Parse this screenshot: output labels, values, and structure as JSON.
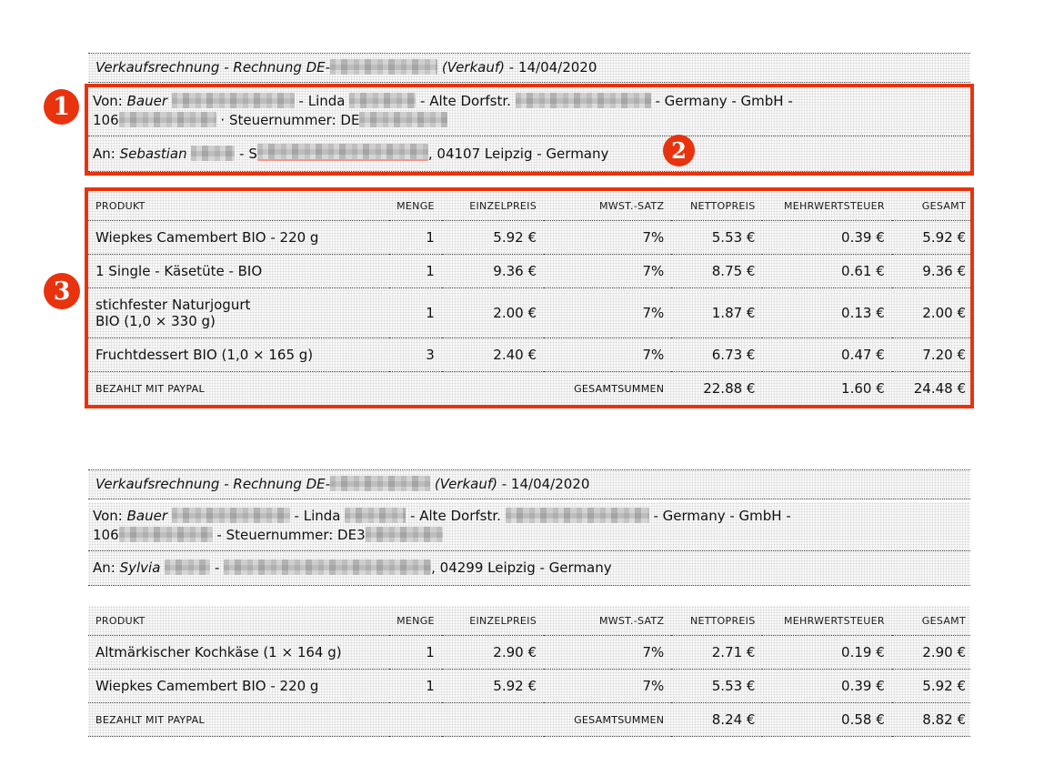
{
  "annotations": {
    "badges": [
      {
        "label": "1"
      },
      {
        "label": "2"
      },
      {
        "label": "3"
      }
    ],
    "highlight_color": "#e8330e"
  },
  "table": {
    "headers": [
      "PRODUKT",
      "MENGE",
      "EINZELPREIS",
      "MWST.-SATZ",
      "NETTOPREIS",
      "MEHRWERTSTEUER",
      "GESAMT"
    ],
    "paid_label": "BEZAHLT MIT PAYPAL",
    "totals_label": "GESAMTSUMMEN"
  },
  "invoices": [
    {
      "title": [
        {
          "t": "Verkaufsrechnung - Rechnung DE-",
          "i": true
        },
        {
          "r": 118
        },
        {
          "t": " (Verkauf)",
          "i": true
        },
        {
          "t": " - 14/04/2020"
        }
      ],
      "from_line1": [
        {
          "t": "Von: "
        },
        {
          "t": "Bauer",
          "i": true
        },
        {
          "t": " "
        },
        {
          "r": 135
        },
        {
          "t": " - Linda "
        },
        {
          "r": 73
        },
        {
          "t": " - Alte Dorfstr. "
        },
        {
          "r": 149
        },
        {
          "t": " - Germany - GmbH -"
        }
      ],
      "from_line2": [
        {
          "t": "106"
        },
        {
          "r": 107
        },
        {
          "t": " · Steuernummer: DE"
        },
        {
          "r": 97
        }
      ],
      "to_line": [
        {
          "t": "An: "
        },
        {
          "t": "Sebastian",
          "i": true
        },
        {
          "t": " "
        },
        {
          "r": 48
        },
        {
          "t": " - S"
        },
        {
          "r": 188,
          "u": true
        },
        {
          "t": ", 04107 Leipzig - Germany"
        }
      ],
      "rows": [
        [
          "Wiepkes Camembert BIO - 220 g",
          "1",
          "5.92 €",
          "7%",
          "5.53 €",
          "0.39 €",
          "5.92 €"
        ],
        [
          "1 Single - Käsetüte - BIO",
          "1",
          "9.36 €",
          "7%",
          "8.75 €",
          "0.61 €",
          "9.36 €"
        ],
        [
          "stichfester Naturjogurt\nBIO (1,0 × 330 g)",
          "1",
          "2.00 €",
          "7%",
          "1.87 €",
          "0.13 €",
          "2.00 €"
        ],
        [
          "Fruchtdessert BIO (1,0 × 165 g)",
          "3",
          "2.40 €",
          "7%",
          "6.73 €",
          "0.47 €",
          "7.20 €"
        ]
      ],
      "totals": [
        "22.88 €",
        "1.60 €",
        "24.48 €"
      ]
    },
    {
      "title": [
        {
          "t": "Verkaufsrechnung - Rechnung DE-",
          "i": true
        },
        {
          "r": 110
        },
        {
          "t": " (Verkauf)",
          "i": true
        },
        {
          "t": " - 14/04/2020"
        }
      ],
      "from_line1": [
        {
          "t": "Von: "
        },
        {
          "t": "Bauer",
          "i": true
        },
        {
          "t": " "
        },
        {
          "r": 130
        },
        {
          "t": " - Linda "
        },
        {
          "r": 67
        },
        {
          "t": " - Alte Dorfstr. "
        },
        {
          "r": 158
        },
        {
          "t": " - Germany - GmbH -"
        }
      ],
      "from_line2": [
        {
          "t": "106"
        },
        {
          "r": 103
        },
        {
          "t": " - Steuernummer: DE3"
        },
        {
          "r": 85
        }
      ],
      "to_line": [
        {
          "t": "An: "
        },
        {
          "t": "Sylvia",
          "i": true
        },
        {
          "t": " "
        },
        {
          "r": 50
        },
        {
          "t": " - "
        },
        {
          "r": 228
        },
        {
          "t": ", 04299 Leipzig - Germany"
        }
      ],
      "rows": [
        [
          "Altmärkischer Kochkäse (1 × 164 g)",
          "1",
          "2.90 €",
          "7%",
          "2.71 €",
          "0.19 €",
          "2.90 €"
        ],
        [
          "Wiepkes Camembert BIO - 220 g",
          "1",
          "5.92 €",
          "7%",
          "5.53 €",
          "0.39 €",
          "5.92 €"
        ]
      ],
      "totals": [
        "8.24 €",
        "0.58 €",
        "8.82 €"
      ]
    }
  ]
}
